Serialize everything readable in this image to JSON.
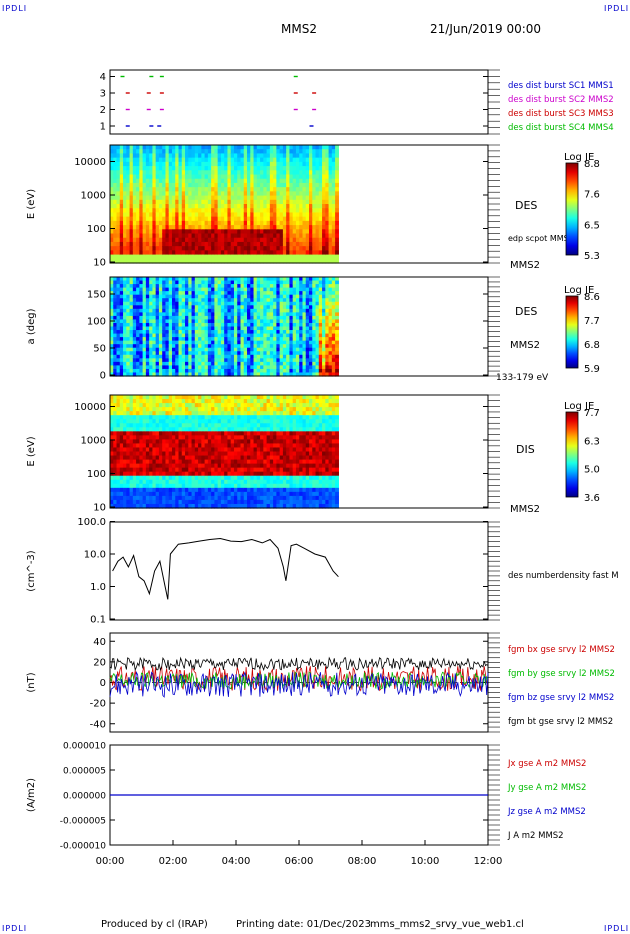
{
  "corner_mark": "IPDLI",
  "header": {
    "spacecraft": "MMS2",
    "date_time": "21/Jun/2019 00:00"
  },
  "footer": {
    "produced_by": "Produced by cl (IRAP)",
    "printing_date": "Printing date: 01/Dec/2023",
    "file": "mms_mms2_srvy_vue_web1.cl"
  },
  "colors": {
    "mms1": "#0000cc",
    "mms2": "#cc00cc",
    "mms3": "#cc0000",
    "mms4": "#00bb00",
    "bx": "#cc0000",
    "by": "#00bb00",
    "bz": "#0000cc",
    "bt": "#000000"
  },
  "chart_data": [
    {
      "type": "scatter",
      "panel": "burst-availability",
      "yticks": [
        "1",
        "2",
        "3",
        "4"
      ],
      "xrange": [
        "00:00",
        "12:00"
      ],
      "series": [
        {
          "name": "des dist burst SC1 MMS1",
          "y": 1,
          "times": [
            "00:30",
            "01:15",
            "01:30",
            "06:20"
          ]
        },
        {
          "name": "des dist burst SC2 MMS2",
          "y": 2,
          "times": [
            "00:30",
            "01:10",
            "01:35",
            "05:50",
            "06:25"
          ]
        },
        {
          "name": "des dist burst SC3 MMS3",
          "y": 3,
          "times": [
            "00:30",
            "01:10",
            "01:35",
            "05:50",
            "06:25"
          ]
        },
        {
          "name": "des dist burst SC4 MMS4",
          "y": 4,
          "times": [
            "00:20",
            "01:15",
            "01:35",
            "05:50"
          ]
        }
      ]
    },
    {
      "type": "heatmap",
      "panel": "des-energy",
      "ylabel": "E (eV)",
      "yscale": "log",
      "yticks": [
        "10",
        "100",
        "1000",
        "10000"
      ],
      "label": "DES",
      "overlay_label": "edp scpot MMS2",
      "sc_label": "MMS2",
      "colorbar": {
        "title": "Log JE",
        "ticks": [
          "8.8",
          "7.6",
          "6.5",
          "5.3"
        ]
      },
      "data_end": "07:15"
    },
    {
      "type": "heatmap",
      "panel": "des-pitch-angle",
      "ylabel": "a (deg)",
      "yticks": [
        "0",
        "50",
        "100",
        "150"
      ],
      "label": "DES",
      "sc_label": "MMS2",
      "energy_range": "133-179 eV",
      "colorbar": {
        "title": "Log JE",
        "ticks": [
          "8.6",
          "7.7",
          "6.8",
          "5.9"
        ]
      },
      "data_end": "07:15"
    },
    {
      "type": "heatmap",
      "panel": "dis-energy",
      "ylabel": "E (eV)",
      "yscale": "log",
      "yticks": [
        "10",
        "100",
        "1000",
        "10000"
      ],
      "label": "DIS",
      "sc_label": "MMS2",
      "colorbar": {
        "title": "Log JE",
        "ticks": [
          "7.7",
          "6.3",
          "5.0",
          "3.6"
        ]
      },
      "data_end": "07:15"
    },
    {
      "type": "line",
      "panel": "density",
      "ylabel": "(cm^-3)",
      "yscale": "log",
      "yticks": [
        "0.1",
        "1.0",
        "10.0",
        "100.0"
      ],
      "series": [
        {
          "name": "des numberdensity fast M",
          "points": [
            [
              "00:05",
              3.0
            ],
            [
              "00:15",
              6.0
            ],
            [
              "00:25",
              8.0
            ],
            [
              "00:35",
              4.0
            ],
            [
              "00:45",
              9.0
            ],
            [
              "00:55",
              2.0
            ],
            [
              "01:05",
              1.5
            ],
            [
              "01:15",
              0.6
            ],
            [
              "01:25",
              3.0
            ],
            [
              "01:35",
              6.0
            ],
            [
              "01:45",
              1.0
            ],
            [
              "01:50",
              0.4
            ],
            [
              "01:55",
              10.0
            ],
            [
              "02:10",
              20.0
            ],
            [
              "02:30",
              22.0
            ],
            [
              "02:50",
              25.0
            ],
            [
              "03:10",
              28.0
            ],
            [
              "03:30",
              30.0
            ],
            [
              "03:50",
              25.0
            ],
            [
              "04:10",
              24.0
            ],
            [
              "04:30",
              28.0
            ],
            [
              "04:50",
              22.0
            ],
            [
              "05:05",
              28.0
            ],
            [
              "05:20",
              15.0
            ],
            [
              "05:30",
              4.0
            ],
            [
              "05:35",
              1.5
            ],
            [
              "05:45",
              18.0
            ],
            [
              "05:55",
              20.0
            ],
            [
              "06:10",
              15.0
            ],
            [
              "06:30",
              10.0
            ],
            [
              "06:50",
              8.0
            ],
            [
              "07:05",
              3.0
            ],
            [
              "07:15",
              2.0
            ]
          ]
        }
      ]
    },
    {
      "type": "line",
      "panel": "magnetic-field",
      "ylabel": "(nT)",
      "yticks": [
        "-40",
        "-20",
        "0",
        "20",
        "40"
      ],
      "ylim": [
        -48,
        48
      ],
      "series": [
        {
          "name": "fgm bx gse srvy l2 MMS2",
          "color_key": "bx"
        },
        {
          "name": "fgm by gse srvy l2 MMS2",
          "color_key": "by"
        },
        {
          "name": "fgm bz gse srvy l2 MMS2",
          "color_key": "bz"
        },
        {
          "name": "fgm bt gse srvy l2 MMS2",
          "color_key": "bt"
        }
      ]
    },
    {
      "type": "line",
      "panel": "current-density",
      "ylabel": "(A/m2)",
      "yticks": [
        "-0.000010",
        "-0.000005",
        "0.000000",
        "0.000005",
        "0.000010"
      ],
      "ylim": [
        -1e-05,
        1e-05
      ],
      "series": [
        {
          "name": "Jx gse A m2 MMS2",
          "color_key": "bx"
        },
        {
          "name": "Jy gse A m2 MMS2",
          "color_key": "by"
        },
        {
          "name": "Jz gse A m2 MMS2",
          "color_key": "bz"
        },
        {
          "name": "J A m2 MMS2",
          "color_key": "bt"
        }
      ]
    }
  ],
  "time_axis": {
    "ticks": [
      "00:00",
      "02:00",
      "04:00",
      "06:00",
      "08:00",
      "10:00",
      "12:00"
    ]
  }
}
